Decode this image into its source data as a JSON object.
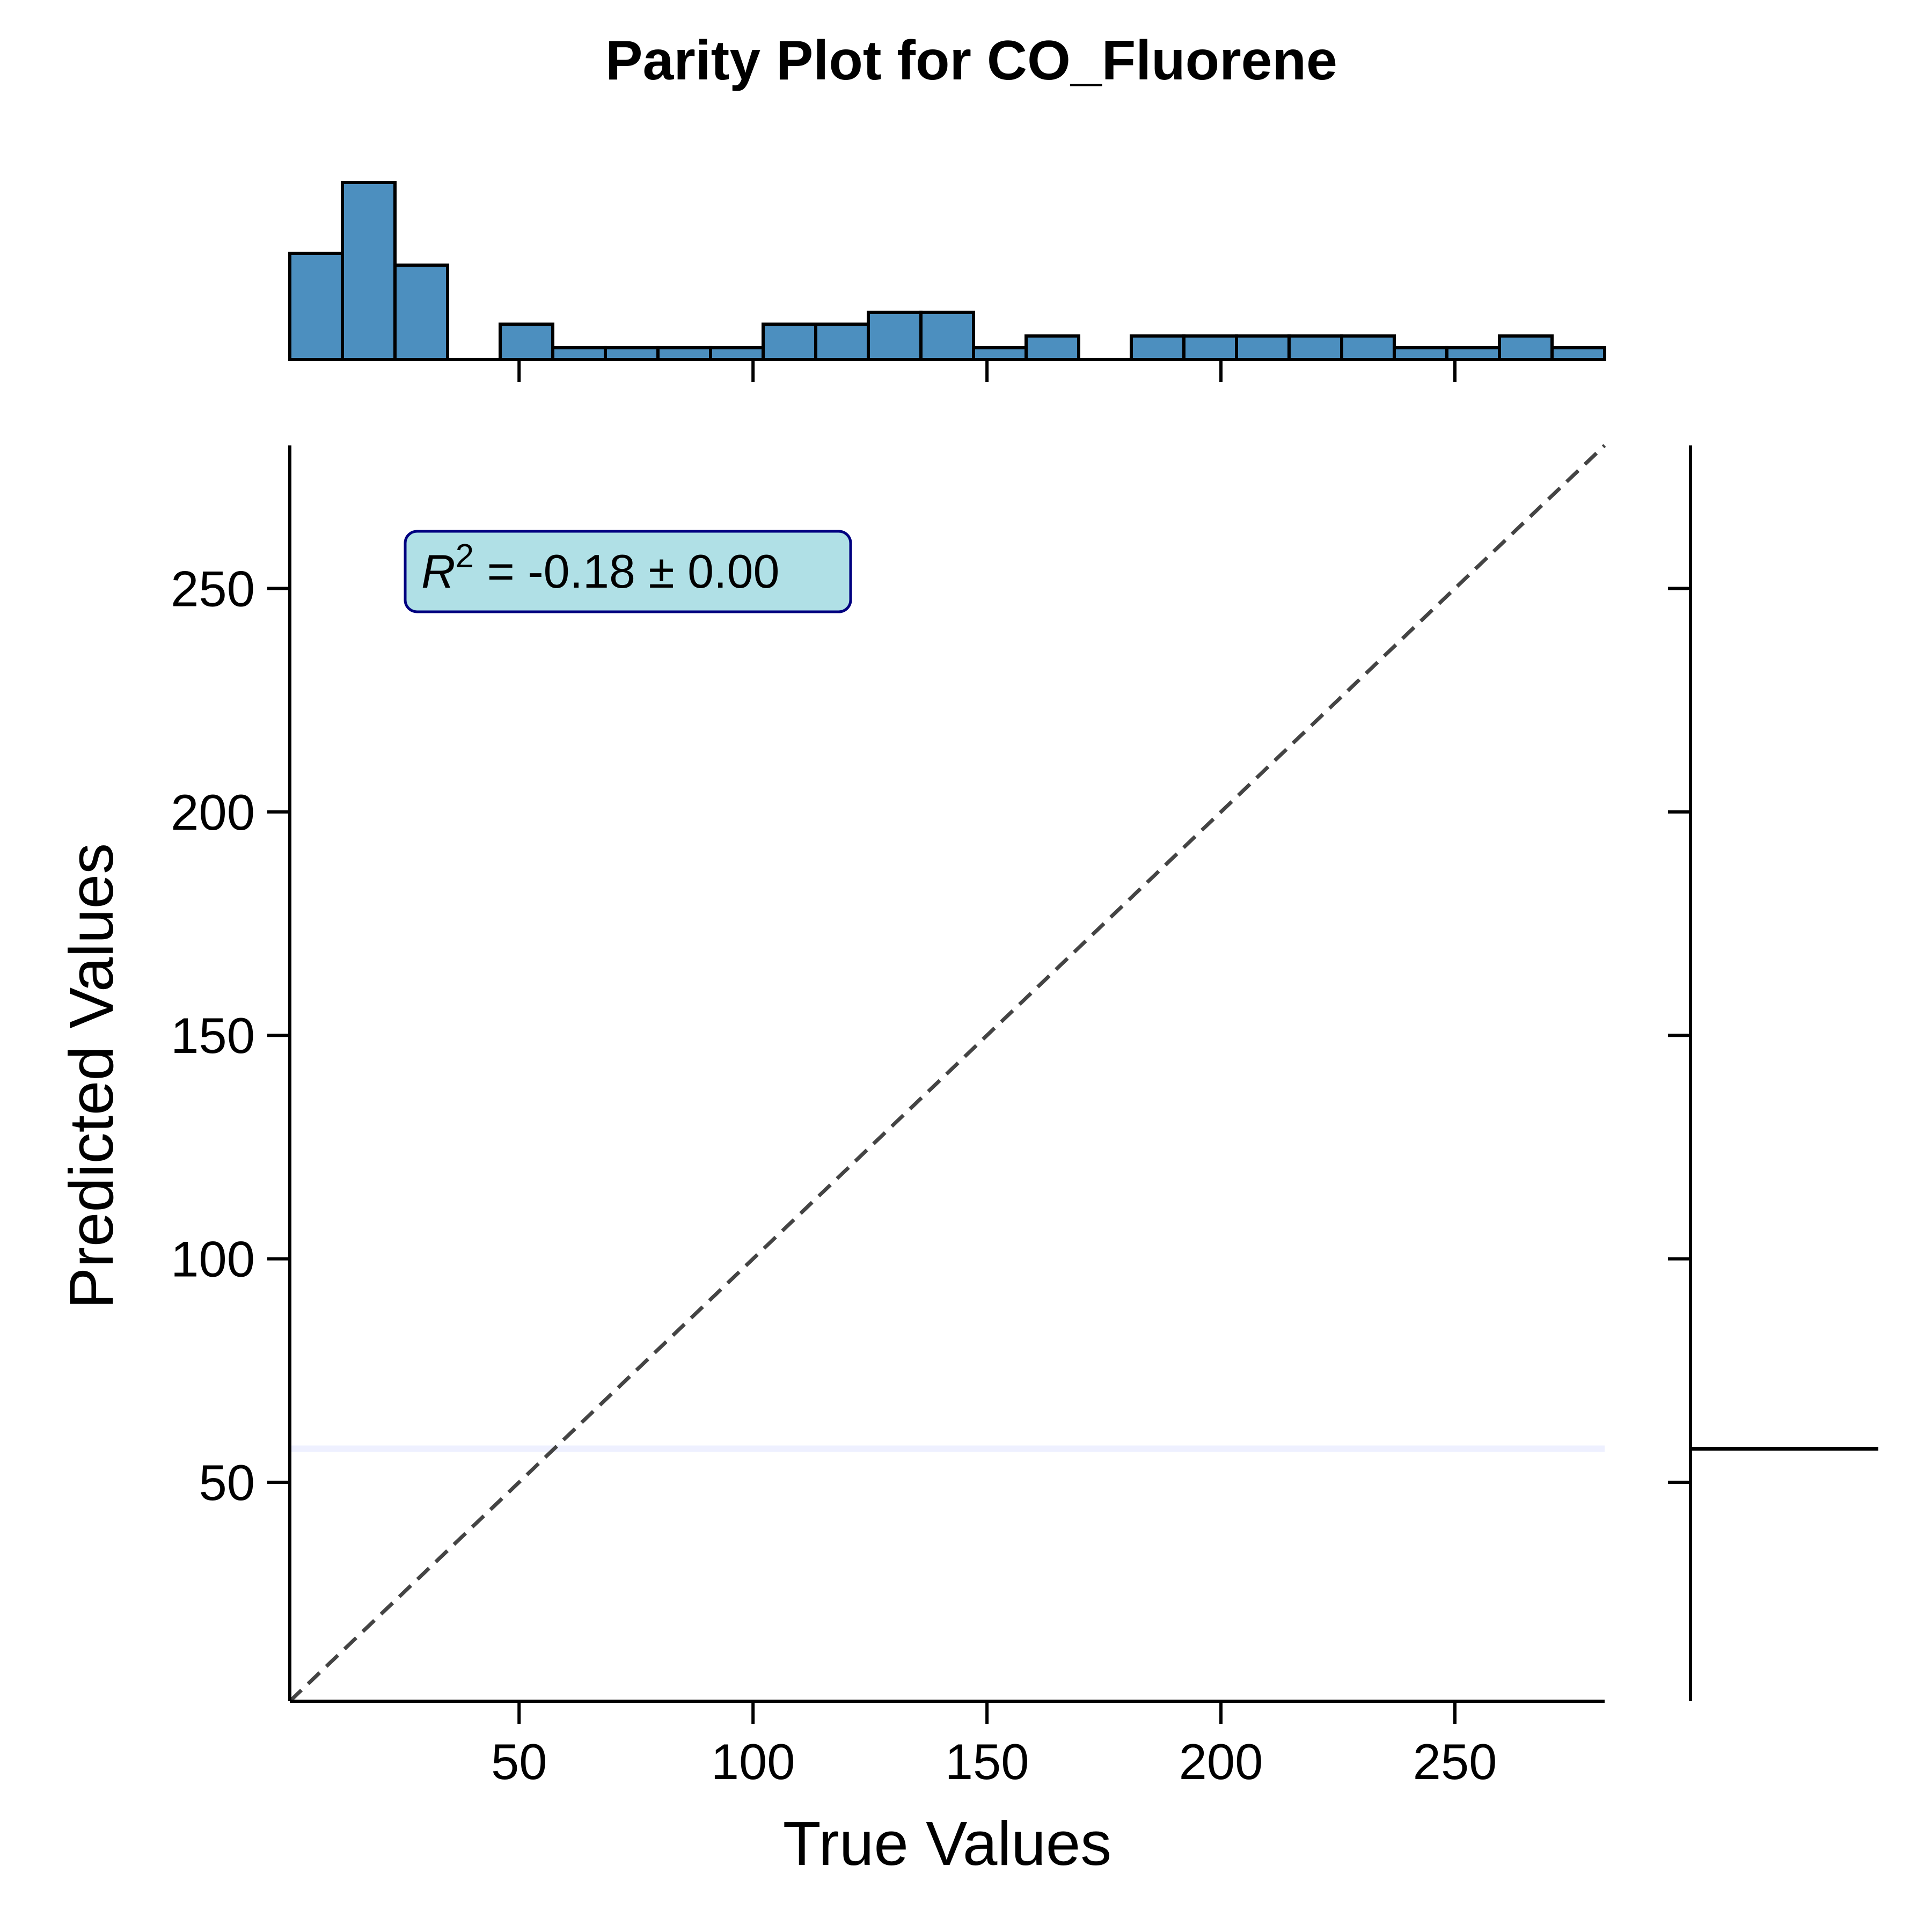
{
  "chart_data": {
    "type": "scatter",
    "title": "Parity Plot for CO_Fluorene",
    "xlabel": "True Values",
    "ylabel": "Predicted Values",
    "xlim": [
      1,
      282
    ],
    "ylim": [
      1,
      282
    ],
    "xticks": [
      50,
      100,
      150,
      200,
      250
    ],
    "yticks": [
      50,
      100,
      150,
      200,
      250
    ],
    "grid": false,
    "annotation": {
      "symbol": "R",
      "superscript": "2",
      "text": " = -0.18 ± 0.00",
      "box_fill": "#b0e0e6",
      "box_edge": "#000080"
    },
    "parity_line": {
      "from": [
        1,
        1
      ],
      "to": [
        282,
        282
      ],
      "style": "dashed",
      "color": "#444444"
    },
    "predicted_constant": 57.5,
    "top_histogram": {
      "bin_edges": [
        1,
        12.24,
        23.48,
        34.72,
        45.96,
        57.2,
        68.44,
        79.68,
        90.92,
        102.16,
        113.4,
        124.64,
        135.88,
        147.12,
        158.36,
        169.6,
        180.84,
        192.08,
        203.32,
        214.56,
        225.8,
        237.04,
        248.28,
        259.52,
        270.76,
        282
      ],
      "counts": [
        6,
        10,
        5.33,
        0,
        2,
        0.67,
        0.67,
        0.67,
        0.67,
        2,
        2,
        2.67,
        2.67,
        0.67,
        1.33,
        0,
        1.33,
        1.33,
        1.33,
        1.33,
        1.33,
        0.67,
        0.67,
        1.33,
        0.67
      ],
      "color": "#4c8fbf"
    },
    "right_histogram": {
      "bin_center": 57.5,
      "color": "#000000"
    }
  }
}
